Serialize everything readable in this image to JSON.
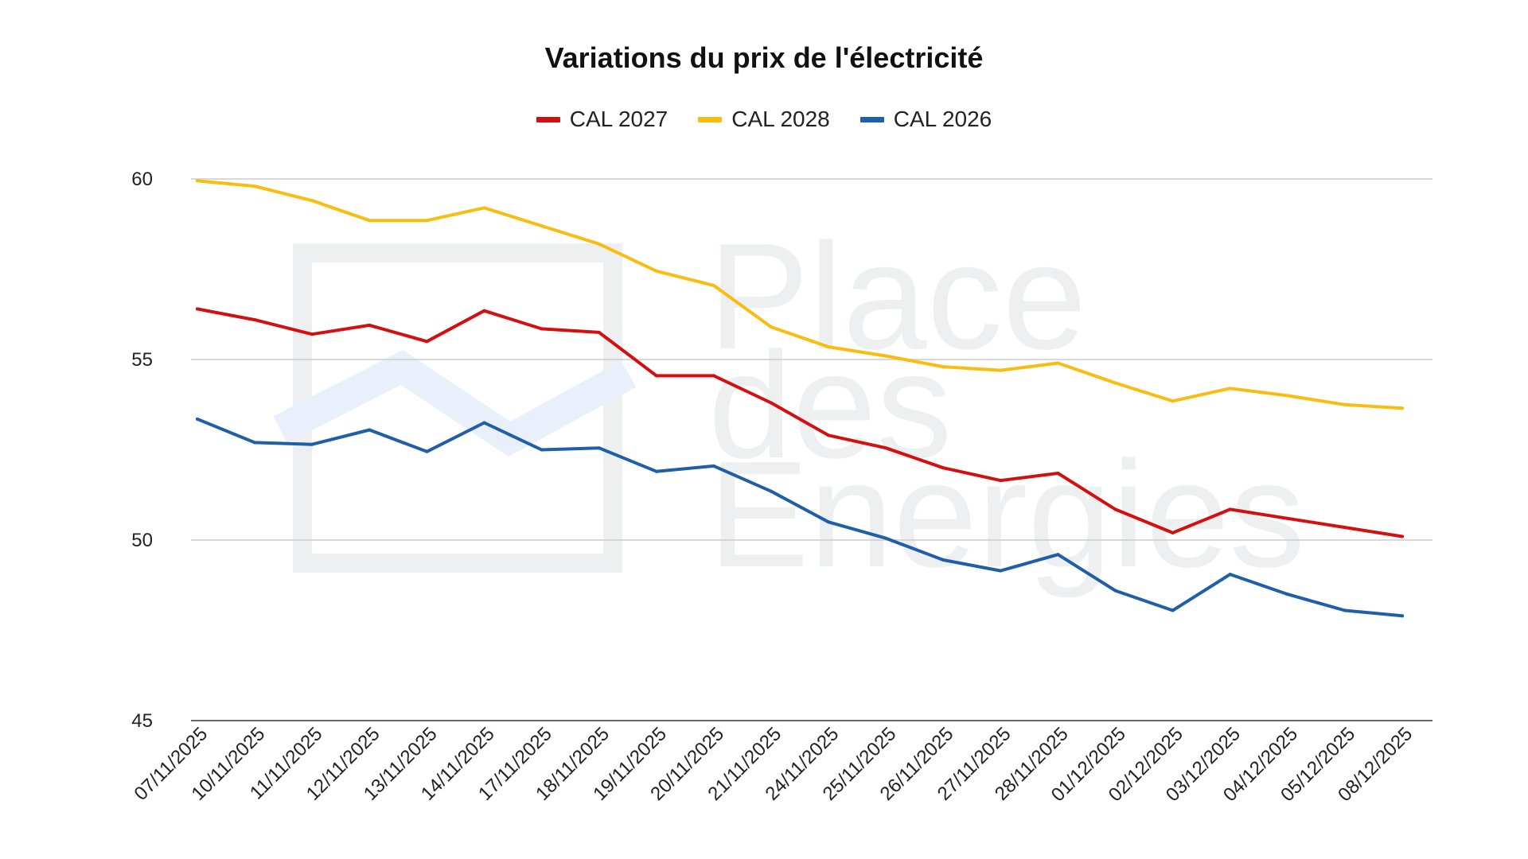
{
  "chart_data": {
    "type": "line",
    "title": "Variations du prix de l'électricité",
    "xlabel": "",
    "ylabel": "",
    "ylim": [
      45,
      60
    ],
    "yticks": [
      45,
      50,
      55,
      60
    ],
    "grid": true,
    "legend_position": "top-center",
    "categories": [
      "07/11/2025",
      "10/11/2025",
      "11/11/2025",
      "12/11/2025",
      "13/11/2025",
      "14/11/2025",
      "17/11/2025",
      "18/11/2025",
      "19/11/2025",
      "20/11/2025",
      "21/11/2025",
      "24/11/2025",
      "25/11/2025",
      "26/11/2025",
      "27/11/2025",
      "28/11/2025",
      "01/12/2025",
      "02/12/2025",
      "03/12/2025",
      "04/12/2025",
      "05/12/2025",
      "08/12/2025"
    ],
    "series": [
      {
        "name": "CAL 2027",
        "color": "#d40f0f",
        "values": [
          56.4,
          56.1,
          55.7,
          55.95,
          55.5,
          56.35,
          55.85,
          55.75,
          54.55,
          54.55,
          53.8,
          52.9,
          52.55,
          52.0,
          51.65,
          51.85,
          50.85,
          50.2,
          50.85,
          50.6,
          50.35,
          50.1
        ]
      },
      {
        "name": "CAL 2028",
        "color": "#f9bc0f",
        "values": [
          59.95,
          59.8,
          59.4,
          58.85,
          58.85,
          59.2,
          58.7,
          58.2,
          57.45,
          57.05,
          55.9,
          55.35,
          55.1,
          54.8,
          54.7,
          54.9,
          54.35,
          53.85,
          54.2,
          54.0,
          53.75,
          53.65
        ]
      },
      {
        "name": "CAL 2026",
        "color": "#1f5ea8",
        "values": [
          53.35,
          52.7,
          52.65,
          53.05,
          52.45,
          53.25,
          52.5,
          52.55,
          51.9,
          52.05,
          51.35,
          50.5,
          50.05,
          49.45,
          49.15,
          49.6,
          48.6,
          48.05,
          49.05,
          48.5,
          48.05,
          47.9
        ]
      }
    ]
  },
  "watermark": {
    "line1": "Place",
    "line2": "des",
    "line3": "Energies"
  }
}
